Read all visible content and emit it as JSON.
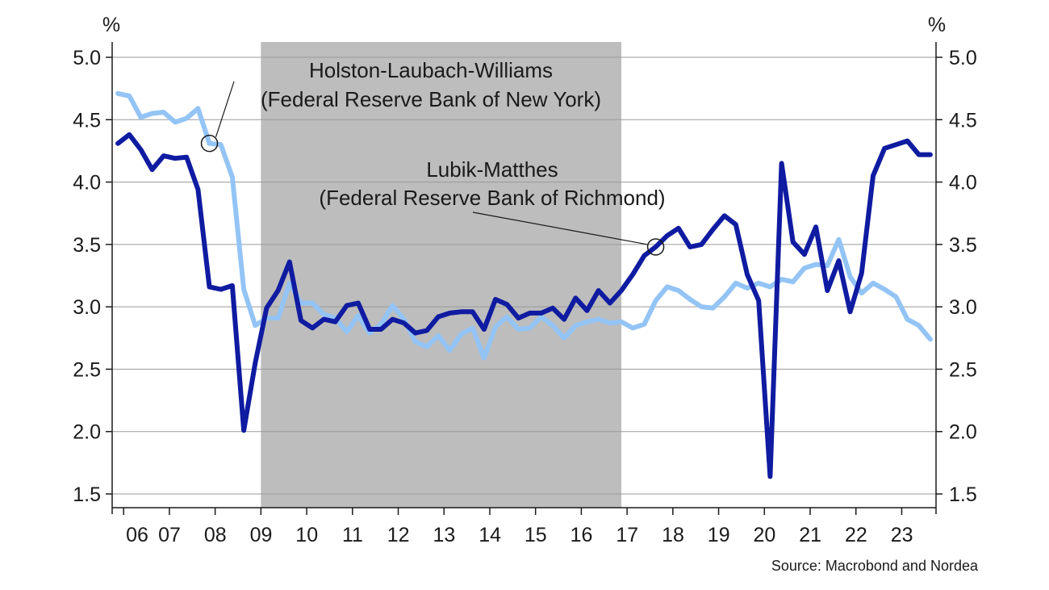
{
  "chart_data": {
    "type": "line",
    "y_unit_left": "%",
    "y_unit_right": "%",
    "ylim": [
      1.5,
      5.0
    ],
    "yticks": [
      "5.0",
      "4.5",
      "4.0",
      "3.5",
      "3.0",
      "2.5",
      "2.0",
      "1.5"
    ],
    "x_range": [
      2005.75,
      2023.75
    ],
    "xticks": [
      "06",
      "07",
      "08",
      "09",
      "10",
      "11",
      "12",
      "13",
      "14",
      "15",
      "16",
      "17",
      "18",
      "19",
      "20",
      "21",
      "22",
      "23"
    ],
    "shaded_period": [
      2009.0,
      2016.875
    ],
    "grid": "horizontal",
    "series": [
      {
        "name": "Holston-Laubach-Williams (Federal Reserve Bank of New York)",
        "color": "#93c4f5",
        "annotation_lines": [
          "Holston-Laubach-Williams",
          "(Federal Reserve Bank of New York)"
        ],
        "marker_x": 2007.875,
        "x": [
          2005.875,
          2006.125,
          2006.375,
          2006.625,
          2006.875,
          2007.125,
          2007.375,
          2007.625,
          2007.875,
          2008.125,
          2008.375,
          2008.625,
          2008.875,
          2009.125,
          2009.375,
          2009.625,
          2009.875,
          2010.125,
          2010.375,
          2010.625,
          2010.875,
          2011.125,
          2011.375,
          2011.625,
          2011.875,
          2012.125,
          2012.375,
          2012.625,
          2012.875,
          2013.125,
          2013.375,
          2013.625,
          2013.875,
          2014.125,
          2014.375,
          2014.625,
          2014.875,
          2015.125,
          2015.375,
          2015.625,
          2015.875,
          2016.125,
          2016.375,
          2016.625,
          2016.875,
          2017.125,
          2017.375,
          2017.625,
          2017.875,
          2018.125,
          2018.375,
          2018.625,
          2018.875,
          2019.125,
          2019.375,
          2019.625,
          2019.875,
          2020.125,
          2020.375,
          2020.625,
          2020.875,
          2021.125,
          2021.375,
          2021.625,
          2021.875,
          2022.125,
          2022.375,
          2022.625,
          2022.875,
          2023.125,
          2023.375,
          2023.625
        ],
        "y": [
          4.71,
          4.69,
          4.52,
          4.55,
          4.56,
          4.48,
          4.51,
          4.59,
          4.31,
          4.3,
          4.04,
          3.14,
          2.85,
          2.91,
          2.91,
          3.19,
          3.03,
          3.03,
          2.94,
          2.91,
          2.8,
          2.93,
          2.79,
          2.86,
          3.01,
          2.9,
          2.72,
          2.68,
          2.77,
          2.65,
          2.78,
          2.83,
          2.59,
          2.84,
          2.92,
          2.82,
          2.83,
          2.92,
          2.85,
          2.75,
          2.85,
          2.88,
          2.9,
          2.87,
          2.88,
          2.83,
          2.86,
          3.05,
          3.16,
          3.13,
          3.06,
          3.0,
          2.99,
          3.08,
          3.19,
          3.15,
          3.19,
          3.16,
          3.22,
          3.2,
          3.31,
          3.34,
          3.33,
          3.54,
          3.24,
          3.11,
          3.19,
          3.14,
          3.08,
          2.9,
          2.85,
          2.74
        ]
      },
      {
        "name": "Lubik-Matthes (Federal Reserve Bank of Richmond)",
        "color": "#0f1ba0",
        "annotation_lines": [
          "Lubik-Matthes",
          "(Federal Reserve Bank of Richmond)"
        ],
        "marker_x": 2017.625,
        "x": [
          2005.875,
          2006.125,
          2006.375,
          2006.625,
          2006.875,
          2007.125,
          2007.375,
          2007.625,
          2007.875,
          2008.125,
          2008.375,
          2008.625,
          2008.875,
          2009.125,
          2009.375,
          2009.625,
          2009.875,
          2010.125,
          2010.375,
          2010.625,
          2010.875,
          2011.125,
          2011.375,
          2011.625,
          2011.875,
          2012.125,
          2012.375,
          2012.625,
          2012.875,
          2013.125,
          2013.375,
          2013.625,
          2013.875,
          2014.125,
          2014.375,
          2014.625,
          2014.875,
          2015.125,
          2015.375,
          2015.625,
          2015.875,
          2016.125,
          2016.375,
          2016.625,
          2016.875,
          2017.125,
          2017.375,
          2017.625,
          2017.875,
          2018.125,
          2018.375,
          2018.625,
          2018.875,
          2019.125,
          2019.375,
          2019.625,
          2019.875,
          2020.125,
          2020.375,
          2020.625,
          2020.875,
          2021.125,
          2021.375,
          2021.625,
          2021.875,
          2022.125,
          2022.375,
          2022.625,
          2022.875,
          2023.125,
          2023.375,
          2023.625
        ],
        "y": [
          4.31,
          4.38,
          4.26,
          4.1,
          4.21,
          4.19,
          4.2,
          3.94,
          3.16,
          3.14,
          3.17,
          2.01,
          2.55,
          2.99,
          3.13,
          3.36,
          2.89,
          2.83,
          2.9,
          2.88,
          3.01,
          3.03,
          2.82,
          2.82,
          2.9,
          2.87,
          2.79,
          2.81,
          2.92,
          2.95,
          2.96,
          2.96,
          2.82,
          3.06,
          3.02,
          2.91,
          2.95,
          2.95,
          2.99,
          2.9,
          3.07,
          2.97,
          3.13,
          3.03,
          3.13,
          3.26,
          3.41,
          3.48,
          3.57,
          3.63,
          3.48,
          3.5,
          3.62,
          3.73,
          3.66,
          3.26,
          3.05,
          1.64,
          4.15,
          3.52,
          3.42,
          3.64,
          3.13,
          3.37,
          2.96,
          3.27,
          4.05,
          4.27,
          4.3,
          4.33,
          4.22,
          4.22
        ]
      }
    ],
    "source": "Source: Macrobond and Nordea"
  }
}
